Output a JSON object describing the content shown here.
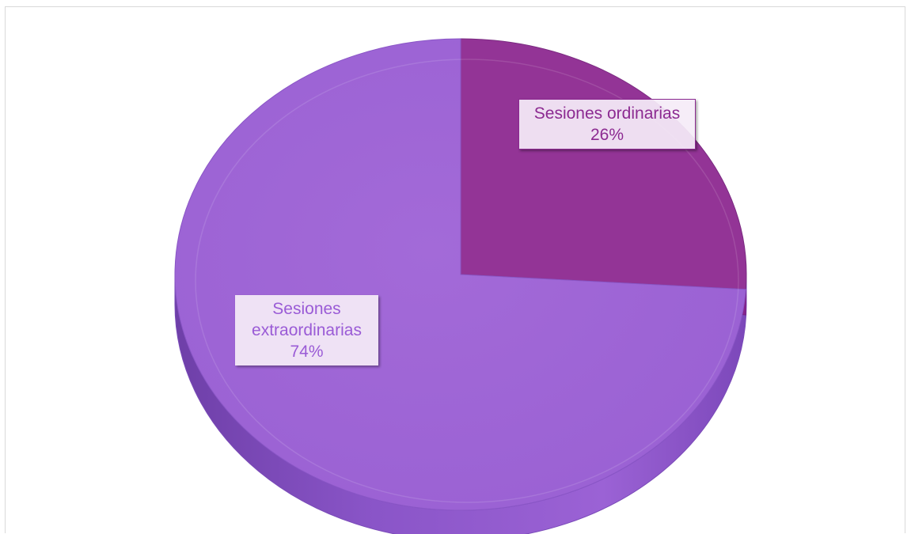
{
  "chart_data": {
    "type": "pie",
    "title": "",
    "categories": [
      "Sesiones ordinarias",
      "Sesiones extraordinarias"
    ],
    "values": [
      26,
      74
    ],
    "unit": "%",
    "colors": [
      "#933496",
      "#9d64d6"
    ],
    "label_colors": [
      "#8c2a91",
      "#9a5bd6"
    ],
    "style": "3d",
    "legend": "none",
    "labels": [
      {
        "lines": [
          "Sesiones ordinarias",
          "26%"
        ]
      },
      {
        "lines": [
          "Sesiones",
          "extraordinarias",
          "74%"
        ]
      }
    ]
  }
}
